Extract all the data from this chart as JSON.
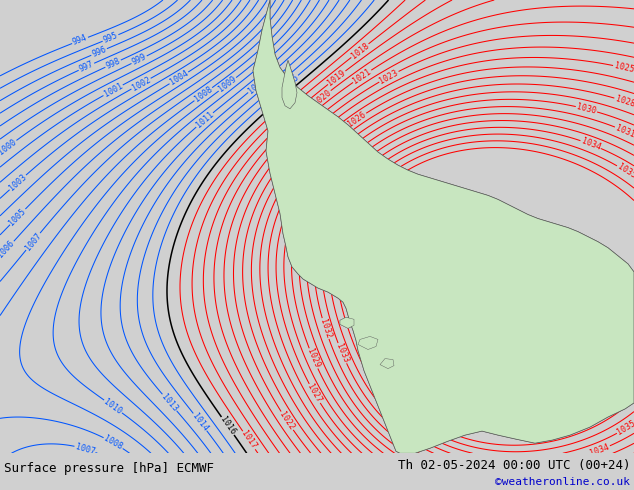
{
  "title_left": "Surface pressure [hPa] ECMWF",
  "title_right": "Th 02-05-2024 00:00 UTC (00+24)",
  "copyright": "©weatheronline.co.uk",
  "bg_color": "#d0d0d0",
  "land_color": "#c8e6c0",
  "isobar_color_high": "#ff0000",
  "isobar_color_low": "#0055ff",
  "isobar_color_black": "#000000",
  "bottom_bar_color": "#ffffff",
  "bottom_text_color": "#000000",
  "copyright_color": "#0000cc",
  "font_size_labels": 6,
  "font_size_bottom": 9,
  "font_size_copyright": 8,
  "figsize": [
    6.34,
    4.9
  ],
  "dpi": 100,
  "HP1": [
    570,
    150
  ],
  "HP2": [
    440,
    220
  ],
  "LP1": [
    -250,
    380
  ],
  "LP2": [
    50,
    520
  ],
  "LP3": [
    100,
    -80
  ]
}
